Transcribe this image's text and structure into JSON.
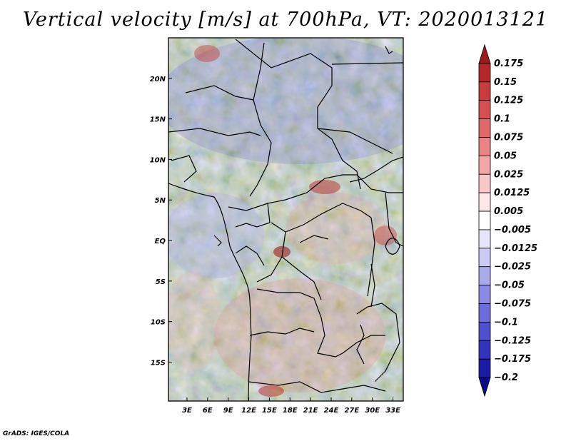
{
  "title": "Vertical velocity [m/s] at 700hPa, VT: 2020013121",
  "footer": "GrADS: IGES/COLA",
  "chart_data": {
    "type": "heatmap",
    "title": "Vertical velocity [m/s] at 700hPa, VT: 2020013121",
    "x_ticks": [
      "3E",
      "6E",
      "9E",
      "12E",
      "15E",
      "18E",
      "21E",
      "24E",
      "27E",
      "30E",
      "33E"
    ],
    "x_tick_values": [
      3,
      6,
      9,
      12,
      15,
      18,
      21,
      24,
      27,
      30,
      33
    ],
    "y_ticks": [
      "20N",
      "15N",
      "10N",
      "5N",
      "EQ",
      "5S",
      "10S",
      "15S"
    ],
    "y_tick_values": [
      20,
      15,
      10,
      5,
      0,
      -5,
      -10,
      -15
    ],
    "xlim": [
      0.3,
      34.5
    ],
    "ylim": [
      -19.8,
      25
    ],
    "colorbar": {
      "labels": [
        "0.175",
        "0.15",
        "0.125",
        "0.1",
        "0.075",
        "0.05",
        "0.025",
        "0.0125",
        "0.005",
        "−0.005",
        "−0.0125",
        "−0.025",
        "−0.05",
        "−0.075",
        "−0.1",
        "−0.125",
        "−0.175",
        "−0.2"
      ],
      "colors": [
        "#9b1a1a",
        "#b42828",
        "#c83c3c",
        "#d75050",
        "#e16868",
        "#ea8484",
        "#f2a6a6",
        "#f8c8c8",
        "#fce6e6",
        "#ffffff",
        "#e6e6fa",
        "#cacaf5",
        "#a9a9ee",
        "#8a8ae6",
        "#6c6cdc",
        "#4f4fcf",
        "#3232bd",
        "#1b1ba6",
        "#0a0a8a"
      ]
    }
  }
}
